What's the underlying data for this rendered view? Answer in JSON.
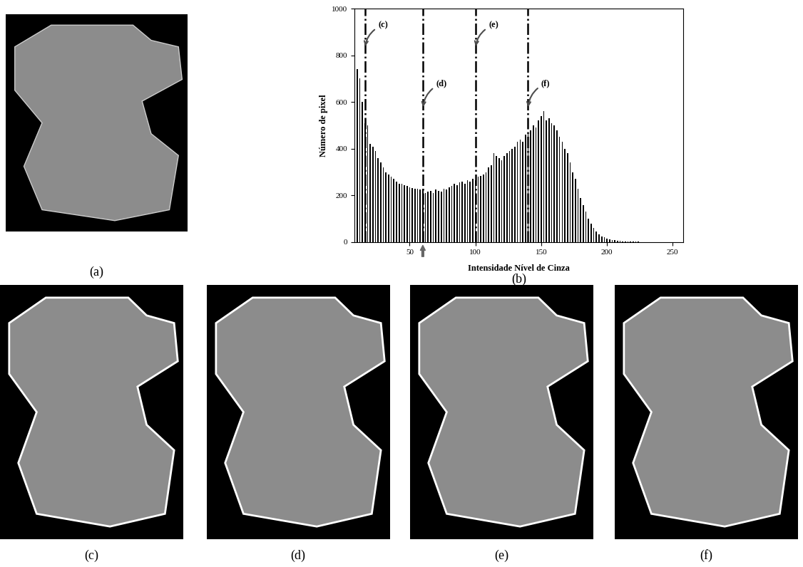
{
  "chart_data": {
    "type": "bar",
    "x_label": "Intensidade Nível de Cinza",
    "y_label": "Número de pixel",
    "x": [
      10,
      12,
      14,
      16,
      18,
      20,
      22,
      24,
      26,
      28,
      30,
      32,
      34,
      36,
      38,
      40,
      42,
      44,
      46,
      48,
      50,
      52,
      54,
      56,
      58,
      60,
      62,
      64,
      66,
      68,
      70,
      72,
      74,
      76,
      78,
      80,
      82,
      84,
      86,
      88,
      90,
      92,
      94,
      96,
      98,
      100,
      102,
      104,
      106,
      108,
      110,
      112,
      114,
      116,
      118,
      120,
      122,
      124,
      126,
      128,
      130,
      132,
      134,
      136,
      138,
      140,
      142,
      144,
      146,
      148,
      150,
      152,
      154,
      156,
      158,
      160,
      162,
      164,
      166,
      168,
      170,
      172,
      174,
      176,
      178,
      180,
      182,
      184,
      186,
      188,
      190,
      192,
      194,
      196,
      198,
      200,
      202,
      204,
      206,
      208,
      210,
      212,
      214,
      216,
      218,
      220,
      222,
      224,
      226,
      228,
      230,
      232,
      234,
      236,
      238,
      240,
      242,
      244,
      246,
      248,
      250
    ],
    "values": [
      740,
      700,
      600,
      510,
      500,
      420,
      410,
      390,
      360,
      340,
      320,
      300,
      290,
      280,
      270,
      260,
      250,
      250,
      245,
      240,
      235,
      232,
      230,
      230,
      225,
      228,
      210,
      215,
      220,
      210,
      225,
      220,
      215,
      230,
      225,
      235,
      240,
      250,
      245,
      255,
      260,
      250,
      265,
      260,
      270,
      265,
      280,
      285,
      290,
      300,
      320,
      330,
      380,
      370,
      360,
      350,
      370,
      380,
      390,
      400,
      410,
      430,
      440,
      430,
      460,
      470,
      480,
      500,
      490,
      520,
      540,
      560,
      520,
      530,
      510,
      500,
      480,
      450,
      430,
      400,
      380,
      340,
      300,
      270,
      230,
      190,
      160,
      130,
      100,
      80,
      60,
      45,
      35,
      25,
      20,
      15,
      12,
      10,
      8,
      6,
      5,
      4,
      4,
      3,
      3,
      2,
      2,
      2,
      1,
      1,
      1,
      1,
      1,
      1,
      1,
      1,
      1,
      0,
      1,
      0,
      1
    ],
    "color": "#000000",
    "xlim": [
      8,
      258
    ],
    "xticks": [
      50,
      100,
      150,
      200,
      250
    ],
    "ylim": [
      0,
      1000
    ],
    "yticks": [
      0,
      200,
      400,
      600,
      800,
      1000
    ],
    "annotations": [
      {
        "text": "(c)",
        "x": 16
      },
      {
        "text": "(d)",
        "x": 60
      },
      {
        "text": "(e)",
        "x": 100
      },
      {
        "text": "(f)",
        "x": 140
      }
    ],
    "arrow_x": 60,
    "grid": false
  },
  "panels": {
    "labels": [
      "(a)",
      "(b)",
      "(c)",
      "(d)",
      "(e)",
      "(f)"
    ]
  }
}
